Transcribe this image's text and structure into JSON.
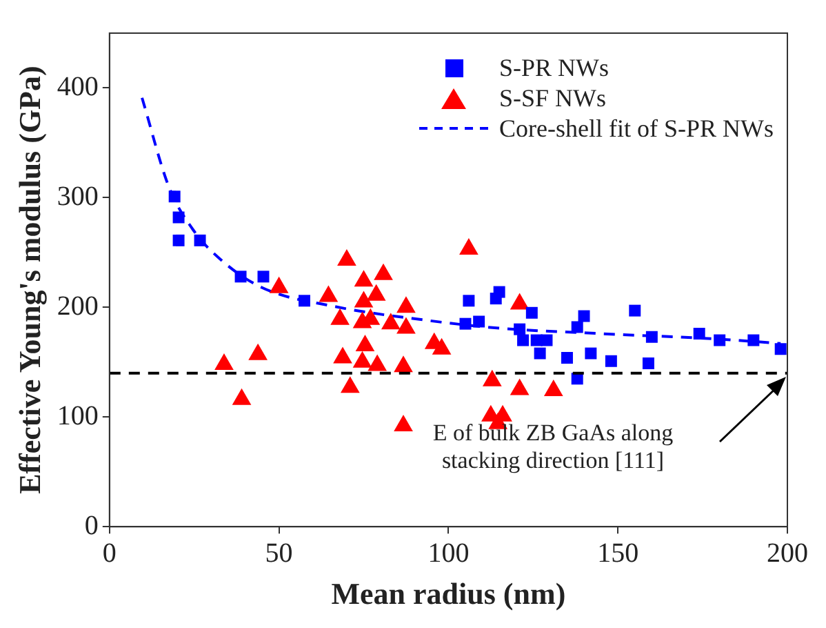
{
  "chart_data": {
    "type": "scatter",
    "xlabel": "Mean radius (nm)",
    "ylabel": "Effective Young's modulus (GPa)",
    "xlim": [
      0,
      200
    ],
    "xticks": [
      0,
      50,
      100,
      150,
      200
    ],
    "ylim": [
      0,
      450
    ],
    "yticks": [
      0,
      100,
      200,
      300,
      400
    ],
    "legend": "top right",
    "grid": false,
    "series": [
      {
        "name": "S-PR NWs",
        "marker": "square",
        "color": "#0000ff",
        "x": [
          19.2,
          20.4,
          20.4,
          26.7,
          38.7,
          45.4,
          57.5,
          106,
          105,
          109,
          115,
          114,
          124.6,
          121,
          122,
          126,
          129,
          127,
          135,
          138,
          140,
          138,
          142,
          148,
          155,
          160,
          159,
          174,
          180,
          190,
          198
        ],
        "values": [
          301,
          282,
          261,
          261,
          228,
          228,
          206,
          206,
          185,
          187,
          214,
          208,
          195,
          180,
          170,
          170,
          170,
          158,
          154,
          182,
          192,
          135,
          158,
          151,
          197,
          173,
          149,
          176,
          170,
          170,
          162
        ]
      },
      {
        "name": "S-SF NWs",
        "marker": "triangle",
        "color": "#ff0000",
        "x": [
          33.8,
          43.8,
          39,
          50,
          64.6,
          70,
          68,
          75,
          80.8,
          78.7,
          75,
          74.6,
          77,
          83,
          87.5,
          87.5,
          68.8,
          75.4,
          74.6,
          79,
          86.7,
          71,
          86.7,
          95.8,
          98,
          106,
          121,
          112.9,
          121,
          131,
          112.5,
          116,
          114.6
        ],
        "values": [
          148,
          157,
          116,
          218,
          210,
          243,
          189,
          224,
          230,
          211,
          205,
          186,
          189,
          185,
          200,
          181,
          154,
          165,
          150,
          147,
          146,
          127,
          92,
          167,
          162,
          253,
          203,
          133,
          125,
          124,
          101,
          101,
          94
        ]
      },
      {
        "name": "Core-shell fit of S-PR NWs",
        "type": "line",
        "marker": "none",
        "line_style": "dashed",
        "color": "#0000ff",
        "x": [
          9.6,
          17.5,
          24.6,
          33,
          45,
          66,
          94,
          115,
          145,
          180,
          198
        ],
        "values": [
          391,
          310,
          271,
          243,
          218,
          201,
          188,
          181,
          176,
          171,
          167
        ]
      }
    ],
    "ref_lines": [
      {
        "axis": "y",
        "value": 140,
        "color": "#000000",
        "line_style": "dashed"
      }
    ],
    "annotations": [
      "E of bulk ZB GaAs along\nstacking direction [111]"
    ]
  }
}
